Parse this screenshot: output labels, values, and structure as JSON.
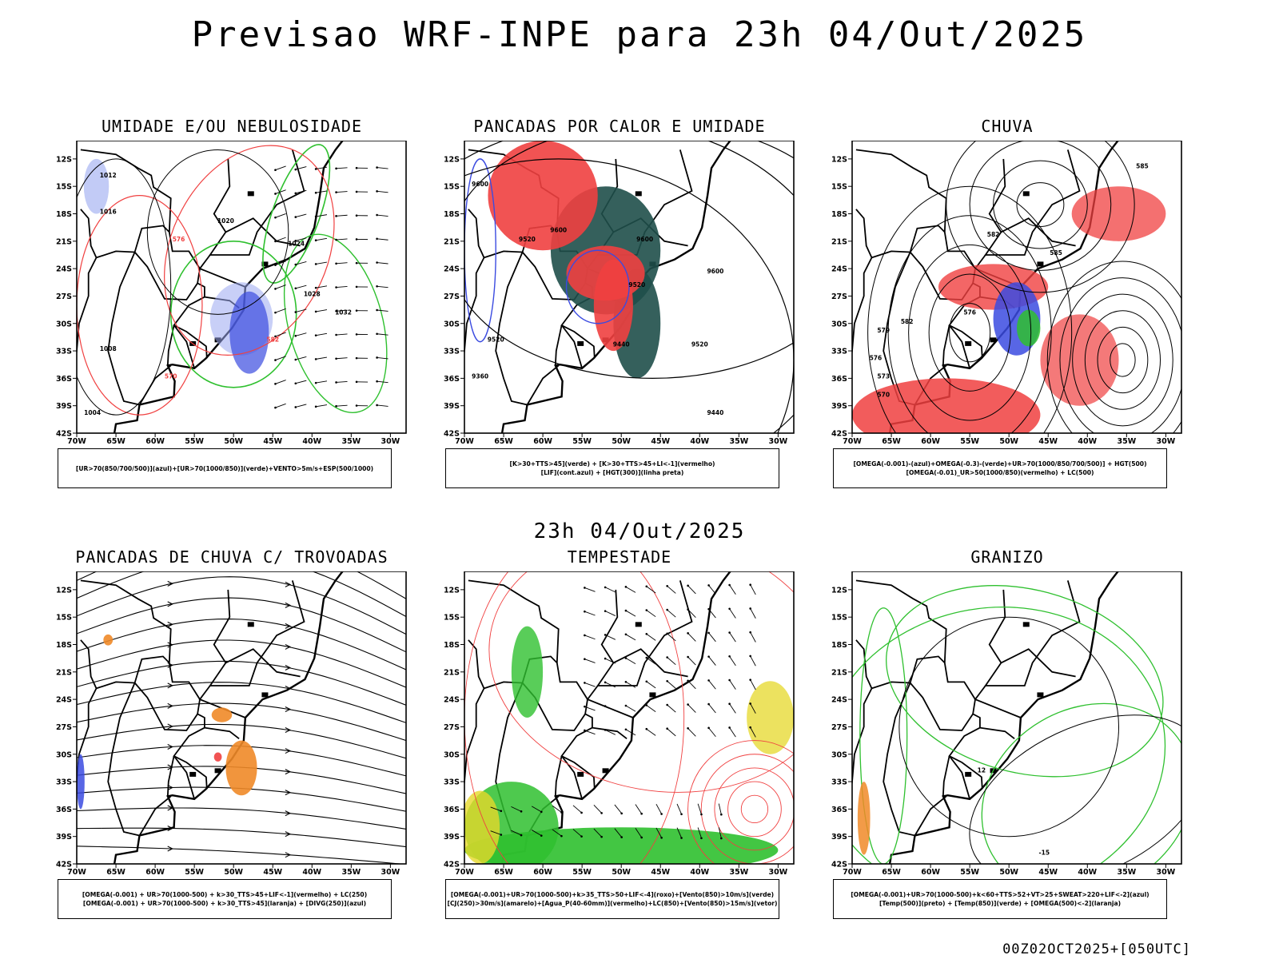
{
  "title": "Previsao WRF-INPE  para 23h 04/Out/2025",
  "mid_title": "23h 04/Out/2025",
  "footer": "00Z02OCT2025+[050UTC]",
  "colors": {
    "blue": "#3b4be0",
    "light_blue": "#9aa8f0",
    "green": "#2fc02f",
    "red": "#f04040",
    "dark_teal": "#1f4f4a",
    "orange": "#f08a28",
    "yellow": "#e6d82a",
    "frame": "#000000"
  },
  "chart_data": [
    {
      "type": "map",
      "title": "UMIDADE E/OU NEBULOSIDADE",
      "legend": [
        "[UR>70(850/700/500)](azul)+[UR>70(1000/850)](verde)+VENTO>5m/s+ESP(500/1000)"
      ],
      "contour_labels": [
        "1012",
        "1016",
        "1020",
        "1024",
        "1028",
        "1032",
        "1008",
        "1004",
        "570",
        "576",
        "582"
      ],
      "xticks": [
        "70W",
        "65W",
        "60W",
        "55W",
        "50W",
        "45W",
        "40W",
        "35W",
        "30W"
      ],
      "yticks": [
        "12S",
        "15S",
        "18S",
        "21S",
        "24S",
        "27S",
        "30S",
        "33S",
        "36S",
        "39S",
        "42S"
      ],
      "lon_range": [
        -70,
        -28
      ],
      "lat_range": [
        -42,
        -10
      ]
    },
    {
      "type": "map",
      "title": "PANCADAS POR CALOR E UMIDADE",
      "legend": [
        "[K>30+TTS>45](verde) + [K>30+TTS>45+LI<-1](vermelho)",
        "[LIF](cont.azul) + [HGT(300)](linha preta)"
      ],
      "contour_labels": [
        "9600",
        "9520",
        "9440",
        "9360"
      ],
      "xticks": [
        "70W",
        "65W",
        "60W",
        "55W",
        "50W",
        "45W",
        "40W",
        "35W",
        "30W"
      ],
      "yticks": [
        "12S",
        "15S",
        "18S",
        "21S",
        "24S",
        "27S",
        "30S",
        "33S",
        "36S",
        "39S",
        "42S"
      ],
      "lon_range": [
        -70,
        -28
      ],
      "lat_range": [
        -42,
        -10
      ]
    },
    {
      "type": "map",
      "title": "CHUVA",
      "legend": [
        "[OMEGA(-0.001)-(azul)+OMEGA(-0.3)-(verde)+UR>70(1000/850/700/500)] + HGT(500)",
        "[OMEGA(-0.01)_UR>50(1000/850)(vermelho) + LC(500)"
      ],
      "contour_labels": [
        "585",
        "582",
        "579",
        "576",
        "573"
      ],
      "xticks": [
        "70W",
        "65W",
        "60W",
        "55W",
        "50W",
        "45W",
        "40W",
        "35W",
        "30W"
      ],
      "yticks": [
        "12S",
        "15S",
        "18S",
        "21S",
        "24S",
        "27S",
        "30S",
        "33S",
        "36S",
        "39S",
        "42S"
      ],
      "lon_range": [
        -70,
        -28
      ],
      "lat_range": [
        -42,
        -10
      ]
    },
    {
      "type": "map",
      "title": "PANCADAS DE CHUVA C/ TROVOADAS",
      "legend": [
        "[OMEGA(-0.001) + UR>70(1000-500) + k>30_TTS>45+LIF<-1](vermelho) + LC(250)",
        "[OMEGA(-0.001) + UR>70(1000-500) + k>30_TTS>45](laranja) + [DIVG(250)](azul)"
      ],
      "contour_labels": [],
      "xticks": [
        "70W",
        "65W",
        "60W",
        "55W",
        "50W",
        "45W",
        "40W",
        "35W",
        "30W"
      ],
      "yticks": [
        "12S",
        "15S",
        "18S",
        "21S",
        "24S",
        "27S",
        "30S",
        "33S",
        "36S",
        "39S",
        "42S"
      ],
      "lon_range": [
        -70,
        -28
      ],
      "lat_range": [
        -42,
        -10
      ]
    },
    {
      "type": "map",
      "title": "TEMPESTADE",
      "legend": [
        "[OMEGA(-0.001)+UR>70(1000-500)+k>35_TTS>50+LIF<-4](roxo)+[Vento(850)>10m/s](verde)",
        "[CJ(250)>30m/s](amarelo)+[Agua_P(40-60mm)](vermelho)+LC(850)+[Vento(850)>15m/s](vetor)"
      ],
      "contour_labels": [],
      "xticks": [
        "70W",
        "65W",
        "60W",
        "55W",
        "50W",
        "45W",
        "40W",
        "35W",
        "30W"
      ],
      "yticks": [
        "12S",
        "15S",
        "18S",
        "21S",
        "24S",
        "27S",
        "30S",
        "33S",
        "36S",
        "39S",
        "42S"
      ],
      "lon_range": [
        -70,
        -28
      ],
      "lat_range": [
        -42,
        -10
      ]
    },
    {
      "type": "map",
      "title": "GRANIZO",
      "legend": [
        "[OMEGA(-0.001)+UR>70(1000-500)+k<60+TTS>52+VT>25+SWEAT>220+LIF<-2](azul)",
        "[Temp(500)](preto) + [Temp(850)](verde) + [OMEGA(500)<-2](laranja)"
      ],
      "contour_labels": [
        "12",
        "-15"
      ],
      "xticks": [
        "70W",
        "65W",
        "60W",
        "55W",
        "50W",
        "45W",
        "40W",
        "35W",
        "30W"
      ],
      "yticks": [
        "12S",
        "15S",
        "18S",
        "21S",
        "24S",
        "27S",
        "30S",
        "33S",
        "36S",
        "39S",
        "42S"
      ],
      "lon_range": [
        -70,
        -28
      ],
      "lat_range": [
        -42,
        -10
      ]
    }
  ]
}
